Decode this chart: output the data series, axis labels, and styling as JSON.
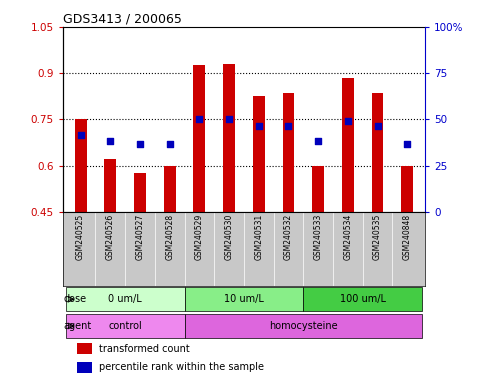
{
  "title": "GDS3413 / 200065",
  "samples": [
    "GSM240525",
    "GSM240526",
    "GSM240527",
    "GSM240528",
    "GSM240529",
    "GSM240530",
    "GSM240531",
    "GSM240532",
    "GSM240533",
    "GSM240534",
    "GSM240535",
    "GSM240848"
  ],
  "red_values": [
    0.75,
    0.62,
    0.575,
    0.6,
    0.925,
    0.93,
    0.825,
    0.835,
    0.6,
    0.885,
    0.835,
    0.6
  ],
  "blue_values": [
    0.7,
    0.68,
    0.67,
    0.67,
    0.75,
    0.75,
    0.73,
    0.73,
    0.68,
    0.745,
    0.73,
    0.67
  ],
  "ylim_left": [
    0.45,
    1.05
  ],
  "ylim_right": [
    0,
    100
  ],
  "yticks_left": [
    0.45,
    0.6,
    0.75,
    0.9,
    1.05
  ],
  "yticks_left_labels": [
    "0.45",
    "0.6",
    "0.75",
    "0.9",
    "1.05"
  ],
  "yticks_right": [
    0,
    25,
    50,
    75,
    100
  ],
  "yticks_right_labels": [
    "0",
    "25",
    "50",
    "75",
    "100%"
  ],
  "grid_lines": [
    0.6,
    0.75,
    0.9
  ],
  "dose_groups": [
    {
      "label": "0 um/L",
      "start": 0,
      "end": 4,
      "color": "#ccffcc"
    },
    {
      "label": "10 um/L",
      "start": 4,
      "end": 8,
      "color": "#88ee88"
    },
    {
      "label": "100 um/L",
      "start": 8,
      "end": 12,
      "color": "#44cc44"
    }
  ],
  "agent_groups": [
    {
      "label": "control",
      "start": 0,
      "end": 4,
      "color": "#ee88ee"
    },
    {
      "label": "homocysteine",
      "start": 4,
      "end": 12,
      "color": "#dd66dd"
    }
  ],
  "dose_label": "dose",
  "agent_label": "agent",
  "bar_color": "#cc0000",
  "blue_color": "#0000bb",
  "bar_bottom": 0.45,
  "bar_width": 0.4,
  "label_color_left": "#cc0000",
  "label_color_right": "#0000cc",
  "legend_red": "transformed count",
  "legend_blue": "percentile rank within the sample",
  "sample_bg": "#c8c8c8",
  "title_fontsize": 9,
  "tick_fontsize": 7.5,
  "sample_fontsize": 5.5,
  "annot_fontsize": 7,
  "legend_fontsize": 7
}
